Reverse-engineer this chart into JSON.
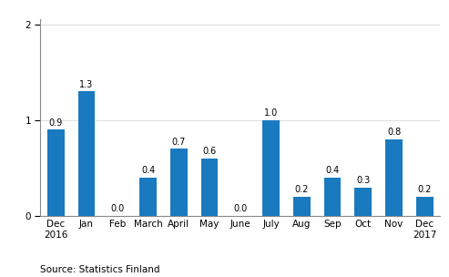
{
  "categories": [
    "Dec\n2016",
    "Jan",
    "Feb",
    "March",
    "April",
    "May",
    "June",
    "July",
    "Aug",
    "Sep",
    "Oct",
    "Nov",
    "Dec\n2017"
  ],
  "values": [
    0.9,
    1.3,
    0.0,
    0.4,
    0.7,
    0.6,
    0.0,
    1.0,
    0.2,
    0.4,
    0.3,
    0.8,
    0.2
  ],
  "bar_color": "#1a7abf",
  "ylim": [
    0,
    2.05
  ],
  "yticks": [
    0,
    1,
    2
  ],
  "source_text": "Source: Statistics Finland",
  "bar_width": 0.55,
  "background_color": "#ffffff",
  "grid_color": "#e0e0e0",
  "tick_fontsize": 7.5,
  "source_fontsize": 7.5,
  "value_fontsize": 7.0
}
